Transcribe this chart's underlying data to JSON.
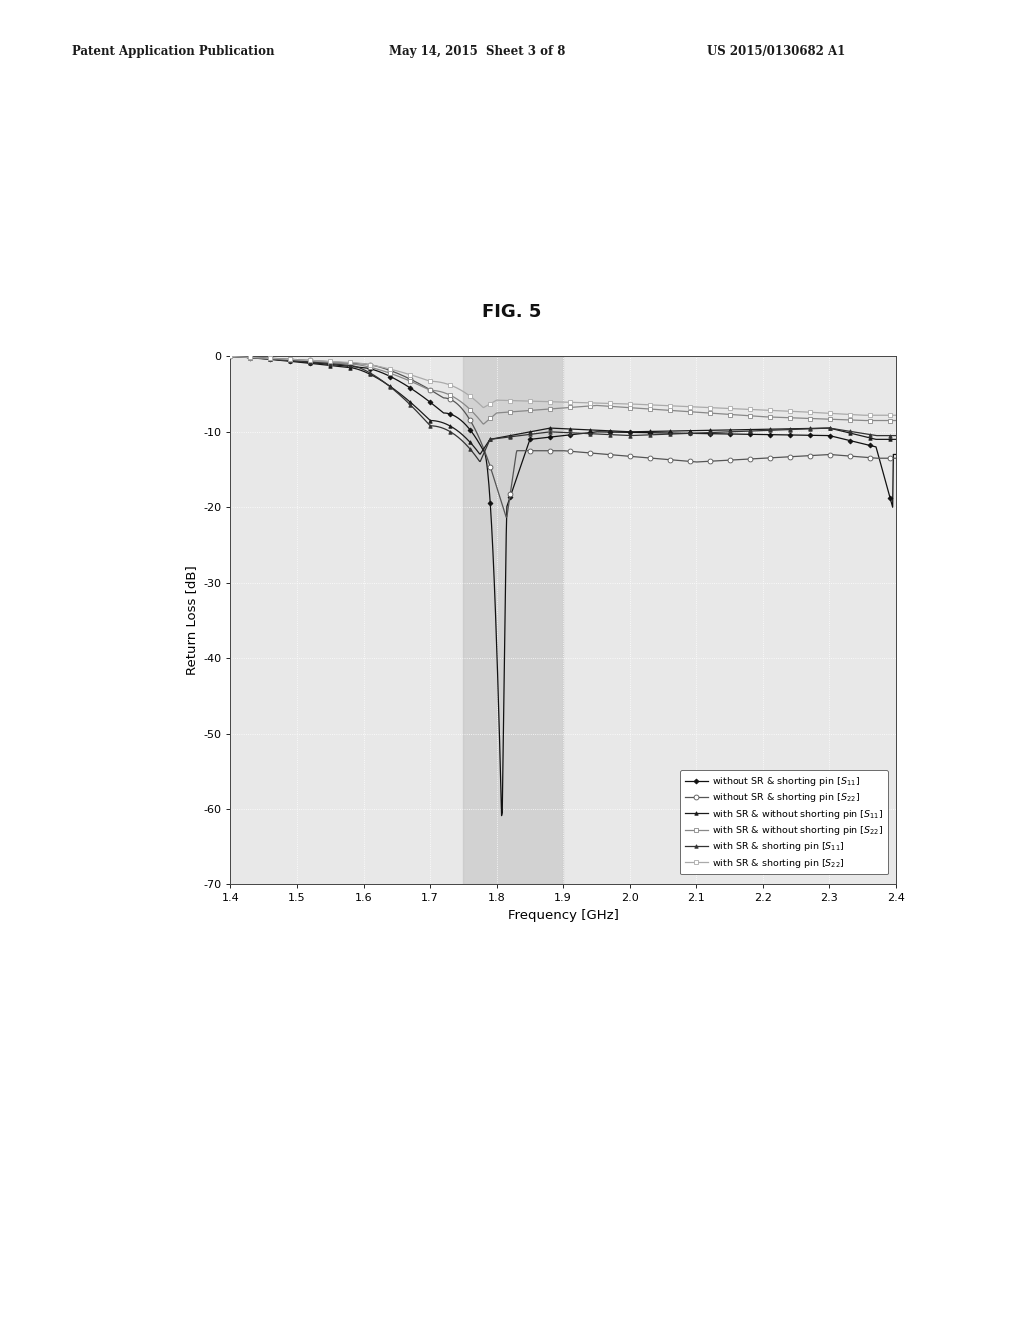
{
  "title": "FIG. 5",
  "xlabel": "Frequency [GHz]",
  "ylabel": "Return Loss [dB]",
  "xlim": [
    1.4,
    2.4
  ],
  "ylim": [
    -70,
    0
  ],
  "xticks": [
    1.4,
    1.5,
    1.6,
    1.7,
    1.8,
    1.9,
    2.0,
    2.1,
    2.2,
    2.3,
    2.4
  ],
  "yticks": [
    0,
    -10,
    -20,
    -30,
    -40,
    -50,
    -60,
    -70
  ],
  "shade_xmin": 1.75,
  "shade_xmax": 1.9,
  "header_left": "Patent Application Publication",
  "header_center": "May 14, 2015  Sheet 3 of 8",
  "header_right": "US 2015/0130682 A1",
  "legend_entries": [
    "without SR & shorting pin [S11]",
    "without SR & shorting pin [S22]",
    "with SR & without shorting pin [S11]",
    "with SR & without shorting pin [S22]",
    "with SR & shorting pin [S11]",
    "with SR & shorting pin [S22]"
  ],
  "background_color": "#ffffff",
  "plot_bg_color": "#e8e8e8",
  "grid_color": "#ffffff",
  "shade_color": "#c0c0c0"
}
